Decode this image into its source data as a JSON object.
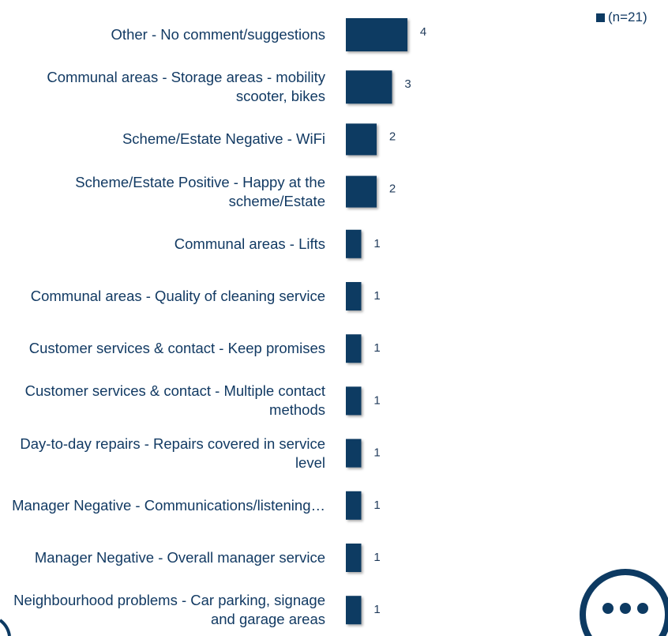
{
  "chart_data": {
    "type": "bar",
    "orientation": "horizontal",
    "categories": [
      "Other - No comment/suggestions",
      "Communal areas - Storage areas - mobility scooter, bikes",
      "Scheme/Estate Negative - WiFi",
      "Scheme/Estate Positive - Happy at the scheme/Estate",
      "Communal areas - Lifts",
      "Communal areas - Quality of cleaning service",
      "Customer services & contact - Keep promises",
      "Customer services & contact - Multiple contact methods",
      "Day-to-day repairs - Repairs covered in service level",
      "Manager Negative - Communications/listening…",
      "Manager Negative - Overall manager service",
      "Neighbourhood problems - Car parking, signage and garage areas"
    ],
    "series": [
      {
        "name": "(n=21)",
        "color": "#0d3a62",
        "values": [
          4,
          3,
          2,
          2,
          1,
          1,
          1,
          1,
          1,
          1,
          1,
          1
        ]
      }
    ],
    "legend": "top-right"
  }
}
